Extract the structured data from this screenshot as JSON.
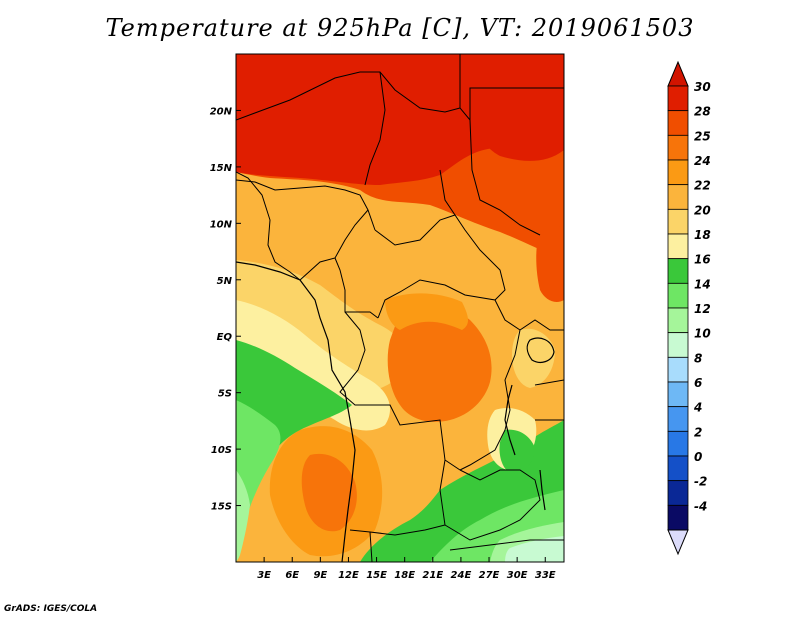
{
  "title": "Temperature at 925hPa [C], VT: 2019061503",
  "credit": "GrADS: IGES/COLA",
  "map": {
    "lon_range": [
      0,
      35
    ],
    "lat_range": [
      -20,
      25
    ],
    "lon_ticks": [
      {
        "lon": 3,
        "label": "3E"
      },
      {
        "lon": 6,
        "label": "6E"
      },
      {
        "lon": 9,
        "label": "9E"
      },
      {
        "lon": 12,
        "label": "12E"
      },
      {
        "lon": 15,
        "label": "15E"
      },
      {
        "lon": 18,
        "label": "18E"
      },
      {
        "lon": 21,
        "label": "21E"
      },
      {
        "lon": 24,
        "label": "24E"
      },
      {
        "lon": 27,
        "label": "27E"
      },
      {
        "lon": 30,
        "label": "30E"
      },
      {
        "lon": 33,
        "label": "33E"
      }
    ],
    "lat_ticks": [
      {
        "lat": 20,
        "label": "20N"
      },
      {
        "lat": 15,
        "label": "15N"
      },
      {
        "lat": 10,
        "label": "10N"
      },
      {
        "lat": 5,
        "label": "5N"
      },
      {
        "lat": 0,
        "label": "EQ"
      },
      {
        "lat": -5,
        "label": "5S"
      },
      {
        "lat": -10,
        "label": "10S"
      },
      {
        "lat": -15,
        "label": "15S"
      }
    ]
  },
  "colorbar": {
    "top_arrow_color": "#d21400",
    "bottom_arrow_color": "#dcdcfa",
    "bins": [
      {
        "color": "#e01e00",
        "label": "30"
      },
      {
        "color": "#f04e00",
        "label": "28"
      },
      {
        "color": "#f7740a",
        "label": "25"
      },
      {
        "color": "#fb9a14",
        "label": "24"
      },
      {
        "color": "#fbb43c",
        "label": "22"
      },
      {
        "color": "#fbd468",
        "label": "20"
      },
      {
        "color": "#fdf0a0",
        "label": "18"
      },
      {
        "color": "#3ac83a",
        "label": "16"
      },
      {
        "color": "#6ee664",
        "label": "14"
      },
      {
        "color": "#a5f59a",
        "label": "12"
      },
      {
        "color": "#c8fad2",
        "label": "10"
      },
      {
        "color": "#a8dcfc",
        "label": "8"
      },
      {
        "color": "#6eb8f5",
        "label": "6"
      },
      {
        "color": "#4696f0",
        "label": "4"
      },
      {
        "color": "#2878e6",
        "label": "2"
      },
      {
        "color": "#1450c8",
        "label": "0"
      },
      {
        "color": "#0a2896",
        "label": "-2"
      },
      {
        "color": "#0a0a64",
        "label": "-4"
      }
    ]
  },
  "temperature_regions": [
    {
      "level": "30",
      "color": "#e01e00"
    },
    {
      "level": "28",
      "color": "#f04e00"
    },
    {
      "level": "25",
      "color": "#f7740a"
    },
    {
      "level": "24",
      "color": "#fb9a14"
    },
    {
      "level": "22",
      "color": "#fbb43c"
    },
    {
      "level": "20",
      "color": "#fbd468"
    },
    {
      "level": "18",
      "color": "#fdf0a0"
    },
    {
      "level": "16",
      "color": "#3ac83a"
    },
    {
      "level": "14",
      "color": "#6ee664"
    },
    {
      "level": "12",
      "color": "#a5f59a"
    },
    {
      "level": "10",
      "color": "#c8fad2"
    }
  ]
}
